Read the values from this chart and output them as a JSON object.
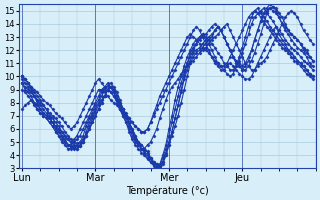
{
  "xlabel": "Température (°c)",
  "day_labels": [
    "Lun",
    "Mar",
    "Mer",
    "Jeu"
  ],
  "day_positions": [
    0,
    24,
    48,
    72
  ],
  "ylim": [
    3,
    15.5
  ],
  "yticks": [
    3,
    4,
    5,
    6,
    7,
    8,
    9,
    10,
    11,
    12,
    13,
    14,
    15
  ],
  "xlim": [
    -1,
    96
  ],
  "bg_color": "#d8eef8",
  "grid_color": "#aaccdd",
  "line_color": "#1a3aaa",
  "series": [
    [
      10.0,
      9.8,
      9.5,
      9.0,
      8.5,
      8.2,
      8.0,
      7.8,
      7.5,
      7.2,
      7.0,
      6.8,
      6.5,
      6.2,
      5.8,
      5.5,
      5.2,
      5.0,
      4.9,
      5.0,
      5.2,
      5.5,
      6.0,
      6.5,
      7.0,
      7.5,
      8.0,
      8.5,
      9.0,
      9.2,
      9.0,
      8.5,
      8.0,
      7.5,
      7.0,
      6.5,
      6.0,
      5.5,
      5.0,
      4.8,
      4.5,
      4.2,
      3.8,
      3.5,
      3.3,
      3.2,
      3.5,
      4.0,
      4.8,
      5.5,
      6.2,
      7.0,
      8.0,
      9.0,
      10.0,
      11.0,
      11.5,
      11.8,
      12.0,
      12.2,
      12.5,
      12.8,
      13.0,
      13.5,
      13.8,
      13.5,
      13.0,
      12.5,
      12.0,
      11.5,
      11.0,
      10.8,
      10.5,
      10.5,
      10.8,
      11.2,
      11.8,
      12.5,
      13.2,
      14.0,
      14.8,
      15.2,
      15.3,
      15.2,
      14.8,
      14.5,
      14.0,
      13.5,
      13.2,
      13.0,
      12.8,
      12.5,
      12.2,
      12.0,
      11.5,
      11.2
    ],
    [
      10.0,
      9.8,
      9.5,
      9.2,
      8.8,
      8.5,
      8.2,
      7.8,
      7.5,
      7.0,
      6.8,
      6.5,
      6.2,
      5.8,
      5.5,
      5.2,
      5.0,
      4.8,
      4.7,
      4.8,
      5.0,
      5.5,
      6.2,
      6.8,
      7.3,
      7.8,
      8.2,
      8.5,
      9.0,
      9.2,
      9.0,
      8.5,
      8.0,
      7.5,
      7.0,
      6.5,
      6.0,
      5.5,
      5.0,
      4.8,
      4.5,
      4.3,
      3.8,
      3.5,
      3.3,
      3.2,
      3.5,
      4.2,
      5.0,
      5.8,
      6.8,
      7.8,
      8.8,
      9.8,
      10.5,
      11.2,
      11.8,
      12.0,
      12.2,
      12.5,
      12.8,
      13.0,
      13.2,
      13.5,
      13.8,
      13.5,
      13.0,
      12.5,
      12.0,
      11.5,
      11.2,
      11.0,
      10.8,
      11.0,
      11.5,
      12.0,
      12.8,
      13.5,
      14.2,
      14.8,
      15.0,
      15.2,
      15.0,
      14.8,
      14.5,
      14.0,
      13.8,
      13.5,
      13.2,
      13.0,
      12.8,
      12.5,
      12.0,
      11.8,
      11.5,
      11.2
    ],
    [
      9.5,
      9.2,
      9.0,
      8.8,
      8.5,
      8.2,
      7.8,
      7.5,
      7.2,
      6.8,
      6.5,
      6.2,
      5.8,
      5.5,
      5.2,
      4.8,
      4.7,
      4.6,
      4.5,
      4.7,
      5.0,
      5.5,
      6.0,
      6.5,
      7.0,
      7.5,
      8.0,
      8.5,
      9.0,
      9.2,
      8.8,
      8.2,
      7.8,
      7.2,
      6.8,
      6.2,
      5.8,
      5.3,
      4.8,
      4.5,
      4.3,
      4.0,
      3.7,
      3.4,
      3.2,
      3.0,
      3.3,
      4.0,
      4.8,
      5.8,
      6.8,
      7.8,
      9.0,
      10.0,
      11.0,
      11.8,
      12.2,
      12.5,
      12.8,
      13.0,
      13.2,
      13.5,
      13.8,
      14.0,
      13.8,
      13.5,
      13.0,
      12.5,
      12.0,
      11.5,
      11.0,
      10.8,
      10.5,
      10.8,
      11.2,
      12.0,
      12.8,
      13.5,
      14.2,
      14.8,
      15.2,
      15.5,
      15.3,
      15.0,
      14.5,
      14.0,
      13.5,
      13.2,
      12.8,
      12.5,
      12.2,
      12.0,
      11.8,
      11.5,
      11.0,
      10.8
    ],
    [
      9.8,
      9.5,
      9.2,
      8.8,
      8.5,
      8.0,
      7.5,
      7.2,
      7.0,
      6.8,
      6.5,
      6.0,
      5.8,
      5.5,
      5.0,
      4.8,
      4.6,
      4.5,
      4.5,
      4.7,
      5.0,
      5.8,
      6.5,
      7.0,
      7.5,
      8.0,
      8.5,
      9.0,
      9.3,
      9.5,
      9.2,
      8.8,
      8.2,
      7.5,
      7.0,
      6.5,
      5.8,
      5.2,
      4.8,
      4.5,
      4.2,
      3.8,
      3.5,
      3.3,
      3.0,
      3.2,
      3.8,
      4.5,
      5.5,
      6.5,
      7.5,
      8.5,
      9.5,
      10.3,
      11.0,
      11.5,
      12.0,
      12.5,
      13.0,
      13.2,
      13.0,
      12.8,
      12.5,
      12.2,
      11.8,
      11.5,
      11.0,
      10.8,
      10.5,
      10.5,
      10.8,
      11.2,
      11.8,
      12.5,
      13.2,
      14.0,
      14.5,
      14.8,
      15.0,
      15.2,
      14.8,
      14.5,
      14.2,
      13.8,
      13.5,
      13.2,
      12.8,
      12.5,
      12.2,
      12.0,
      11.8,
      11.5,
      11.2,
      11.0,
      10.8,
      10.5
    ],
    [
      9.5,
      9.0,
      8.8,
      8.5,
      8.0,
      7.5,
      7.2,
      7.0,
      6.8,
      6.5,
      6.2,
      5.8,
      5.5,
      5.0,
      4.8,
      4.5,
      4.5,
      4.6,
      4.8,
      5.0,
      5.5,
      6.2,
      6.8,
      7.2,
      7.8,
      8.2,
      8.8,
      9.2,
      9.5,
      9.2,
      8.8,
      8.2,
      7.5,
      7.0,
      6.5,
      5.8,
      5.2,
      4.8,
      4.5,
      4.2,
      4.0,
      3.7,
      3.5,
      3.2,
      3.0,
      3.3,
      4.0,
      4.8,
      6.0,
      7.0,
      8.2,
      9.2,
      10.0,
      10.8,
      11.5,
      12.0,
      12.5,
      12.8,
      13.0,
      13.2,
      12.8,
      12.5,
      12.0,
      11.5,
      11.0,
      10.8,
      10.5,
      10.2,
      10.0,
      10.2,
      10.8,
      11.5,
      12.2,
      13.0,
      13.8,
      14.5,
      15.0,
      15.2,
      14.8,
      14.5,
      14.2,
      13.8,
      13.5,
      13.2,
      12.8,
      12.5,
      12.2,
      12.0,
      11.8,
      11.5,
      11.2,
      11.0,
      10.8,
      10.5,
      10.2,
      10.0
    ],
    [
      9.0,
      8.8,
      8.5,
      8.2,
      7.8,
      7.5,
      7.2,
      7.0,
      6.8,
      6.5,
      6.2,
      5.8,
      5.5,
      5.2,
      5.0,
      4.8,
      4.8,
      5.0,
      5.2,
      5.5,
      6.0,
      6.5,
      7.0,
      7.5,
      8.0,
      8.5,
      9.0,
      9.2,
      9.0,
      8.8,
      8.5,
      8.0,
      7.5,
      7.0,
      6.5,
      6.0,
      5.5,
      5.0,
      4.8,
      4.5,
      4.5,
      4.8,
      5.0,
      5.5,
      6.0,
      6.8,
      7.5,
      8.2,
      8.8,
      9.2,
      9.5,
      9.8,
      10.2,
      10.5,
      10.8,
      11.0,
      11.2,
      11.5,
      11.8,
      12.0,
      12.2,
      12.5,
      12.8,
      13.0,
      13.2,
      13.5,
      13.8,
      14.0,
      13.5,
      13.0,
      12.5,
      12.0,
      11.5,
      11.0,
      10.8,
      10.5,
      10.5,
      10.8,
      11.0,
      11.2,
      11.5,
      12.0,
      12.5,
      13.0,
      13.5,
      14.0,
      14.5,
      14.8,
      15.0,
      14.8,
      14.5,
      14.0,
      13.5,
      13.2,
      12.8,
      12.5
    ],
    [
      7.5,
      7.8,
      8.0,
      8.2,
      8.0,
      7.8,
      7.5,
      7.2,
      7.0,
      6.8,
      6.5,
      6.2,
      6.0,
      5.8,
      5.5,
      5.2,
      5.0,
      5.2,
      5.5,
      6.0,
      6.5,
      7.0,
      7.5,
      8.0,
      8.5,
      9.0,
      9.0,
      8.8,
      8.5,
      8.2,
      8.0,
      7.8,
      7.5,
      7.2,
      7.0,
      6.8,
      6.5,
      6.2,
      6.0,
      5.8,
      5.8,
      6.0,
      6.5,
      7.0,
      7.5,
      8.0,
      8.5,
      9.0,
      9.5,
      10.0,
      10.5,
      11.0,
      11.5,
      12.0,
      12.5,
      13.0,
      13.5,
      13.8,
      13.5,
      13.0,
      12.5,
      12.0,
      11.5,
      11.0,
      10.8,
      10.5,
      10.5,
      10.8,
      11.0,
      10.8,
      10.5,
      10.2,
      10.0,
      9.8,
      9.8,
      10.0,
      10.5,
      11.0,
      11.5,
      12.0,
      12.5,
      13.0,
      13.5,
      13.8,
      13.2,
      12.8,
      12.5,
      12.0,
      11.8,
      11.5,
      11.2,
      11.0,
      10.8,
      10.5,
      10.2,
      10.0
    ],
    [
      10.0,
      9.8,
      9.5,
      9.2,
      9.0,
      8.8,
      8.5,
      8.2,
      8.0,
      7.8,
      7.5,
      7.2,
      7.0,
      6.8,
      6.5,
      6.2,
      6.0,
      6.2,
      6.5,
      7.0,
      7.5,
      8.0,
      8.5,
      9.0,
      9.5,
      9.8,
      9.5,
      9.2,
      9.0,
      8.8,
      8.5,
      8.2,
      7.8,
      7.5,
      7.2,
      6.8,
      6.5,
      6.2,
      6.0,
      5.8,
      5.8,
      6.0,
      6.5,
      7.2,
      7.8,
      8.5,
      9.0,
      9.5,
      10.0,
      10.5,
      11.0,
      11.5,
      12.0,
      12.5,
      13.0,
      13.2,
      13.0,
      12.8,
      12.5,
      12.2,
      12.0,
      11.8,
      11.5,
      11.2,
      11.0,
      10.8,
      10.8,
      11.0,
      11.5,
      12.0,
      12.5,
      13.0,
      13.5,
      14.0,
      14.5,
      14.8,
      15.0,
      14.8,
      14.5,
      14.2,
      13.8,
      13.5,
      13.2,
      12.8,
      12.5,
      12.2,
      12.0,
      11.8,
      11.5,
      11.2,
      11.0,
      10.8,
      10.5,
      10.2,
      10.0,
      9.8
    ]
  ]
}
